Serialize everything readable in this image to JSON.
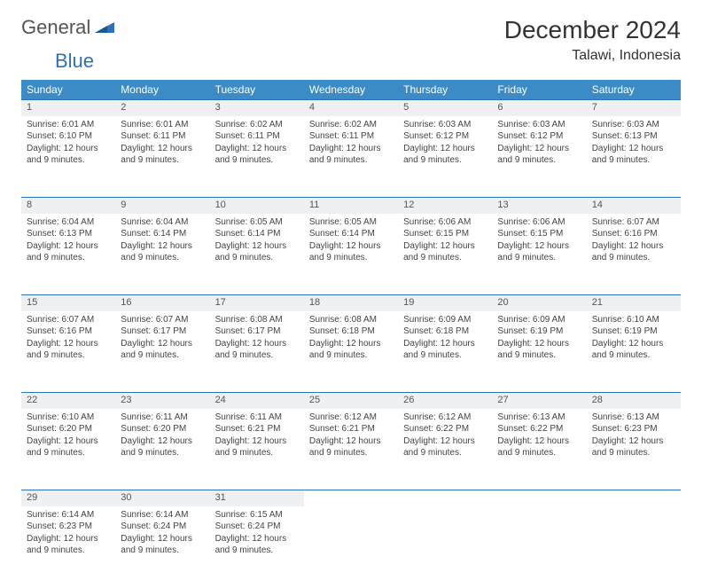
{
  "logo": {
    "text1": "General",
    "text2": "Blue"
  },
  "title": "December 2024",
  "location": "Talawi, Indonesia",
  "colors": {
    "header_bg": "#3b8bc7",
    "header_text": "#ffffff",
    "daynum_bg": "#eef0f2",
    "rule": "#2d72b8",
    "body_text": "#444444",
    "logo_gray": "#555555",
    "logo_blue": "#2d72b8"
  },
  "weekdays": [
    "Sunday",
    "Monday",
    "Tuesday",
    "Wednesday",
    "Thursday",
    "Friday",
    "Saturday"
  ],
  "days": [
    {
      "n": 1,
      "sunrise": "6:01 AM",
      "sunset": "6:10 PM",
      "daylight": "12 hours and 9 minutes."
    },
    {
      "n": 2,
      "sunrise": "6:01 AM",
      "sunset": "6:11 PM",
      "daylight": "12 hours and 9 minutes."
    },
    {
      "n": 3,
      "sunrise": "6:02 AM",
      "sunset": "6:11 PM",
      "daylight": "12 hours and 9 minutes."
    },
    {
      "n": 4,
      "sunrise": "6:02 AM",
      "sunset": "6:11 PM",
      "daylight": "12 hours and 9 minutes."
    },
    {
      "n": 5,
      "sunrise": "6:03 AM",
      "sunset": "6:12 PM",
      "daylight": "12 hours and 9 minutes."
    },
    {
      "n": 6,
      "sunrise": "6:03 AM",
      "sunset": "6:12 PM",
      "daylight": "12 hours and 9 minutes."
    },
    {
      "n": 7,
      "sunrise": "6:03 AM",
      "sunset": "6:13 PM",
      "daylight": "12 hours and 9 minutes."
    },
    {
      "n": 8,
      "sunrise": "6:04 AM",
      "sunset": "6:13 PM",
      "daylight": "12 hours and 9 minutes."
    },
    {
      "n": 9,
      "sunrise": "6:04 AM",
      "sunset": "6:14 PM",
      "daylight": "12 hours and 9 minutes."
    },
    {
      "n": 10,
      "sunrise": "6:05 AM",
      "sunset": "6:14 PM",
      "daylight": "12 hours and 9 minutes."
    },
    {
      "n": 11,
      "sunrise": "6:05 AM",
      "sunset": "6:14 PM",
      "daylight": "12 hours and 9 minutes."
    },
    {
      "n": 12,
      "sunrise": "6:06 AM",
      "sunset": "6:15 PM",
      "daylight": "12 hours and 9 minutes."
    },
    {
      "n": 13,
      "sunrise": "6:06 AM",
      "sunset": "6:15 PM",
      "daylight": "12 hours and 9 minutes."
    },
    {
      "n": 14,
      "sunrise": "6:07 AM",
      "sunset": "6:16 PM",
      "daylight": "12 hours and 9 minutes."
    },
    {
      "n": 15,
      "sunrise": "6:07 AM",
      "sunset": "6:16 PM",
      "daylight": "12 hours and 9 minutes."
    },
    {
      "n": 16,
      "sunrise": "6:07 AM",
      "sunset": "6:17 PM",
      "daylight": "12 hours and 9 minutes."
    },
    {
      "n": 17,
      "sunrise": "6:08 AM",
      "sunset": "6:17 PM",
      "daylight": "12 hours and 9 minutes."
    },
    {
      "n": 18,
      "sunrise": "6:08 AM",
      "sunset": "6:18 PM",
      "daylight": "12 hours and 9 minutes."
    },
    {
      "n": 19,
      "sunrise": "6:09 AM",
      "sunset": "6:18 PM",
      "daylight": "12 hours and 9 minutes."
    },
    {
      "n": 20,
      "sunrise": "6:09 AM",
      "sunset": "6:19 PM",
      "daylight": "12 hours and 9 minutes."
    },
    {
      "n": 21,
      "sunrise": "6:10 AM",
      "sunset": "6:19 PM",
      "daylight": "12 hours and 9 minutes."
    },
    {
      "n": 22,
      "sunrise": "6:10 AM",
      "sunset": "6:20 PM",
      "daylight": "12 hours and 9 minutes."
    },
    {
      "n": 23,
      "sunrise": "6:11 AM",
      "sunset": "6:20 PM",
      "daylight": "12 hours and 9 minutes."
    },
    {
      "n": 24,
      "sunrise": "6:11 AM",
      "sunset": "6:21 PM",
      "daylight": "12 hours and 9 minutes."
    },
    {
      "n": 25,
      "sunrise": "6:12 AM",
      "sunset": "6:21 PM",
      "daylight": "12 hours and 9 minutes."
    },
    {
      "n": 26,
      "sunrise": "6:12 AM",
      "sunset": "6:22 PM",
      "daylight": "12 hours and 9 minutes."
    },
    {
      "n": 27,
      "sunrise": "6:13 AM",
      "sunset": "6:22 PM",
      "daylight": "12 hours and 9 minutes."
    },
    {
      "n": 28,
      "sunrise": "6:13 AM",
      "sunset": "6:23 PM",
      "daylight": "12 hours and 9 minutes."
    },
    {
      "n": 29,
      "sunrise": "6:14 AM",
      "sunset": "6:23 PM",
      "daylight": "12 hours and 9 minutes."
    },
    {
      "n": 30,
      "sunrise": "6:14 AM",
      "sunset": "6:24 PM",
      "daylight": "12 hours and 9 minutes."
    },
    {
      "n": 31,
      "sunrise": "6:15 AM",
      "sunset": "6:24 PM",
      "daylight": "12 hours and 9 minutes."
    }
  ],
  "labels": {
    "sunrise": "Sunrise:",
    "sunset": "Sunset:",
    "daylight": "Daylight:"
  }
}
